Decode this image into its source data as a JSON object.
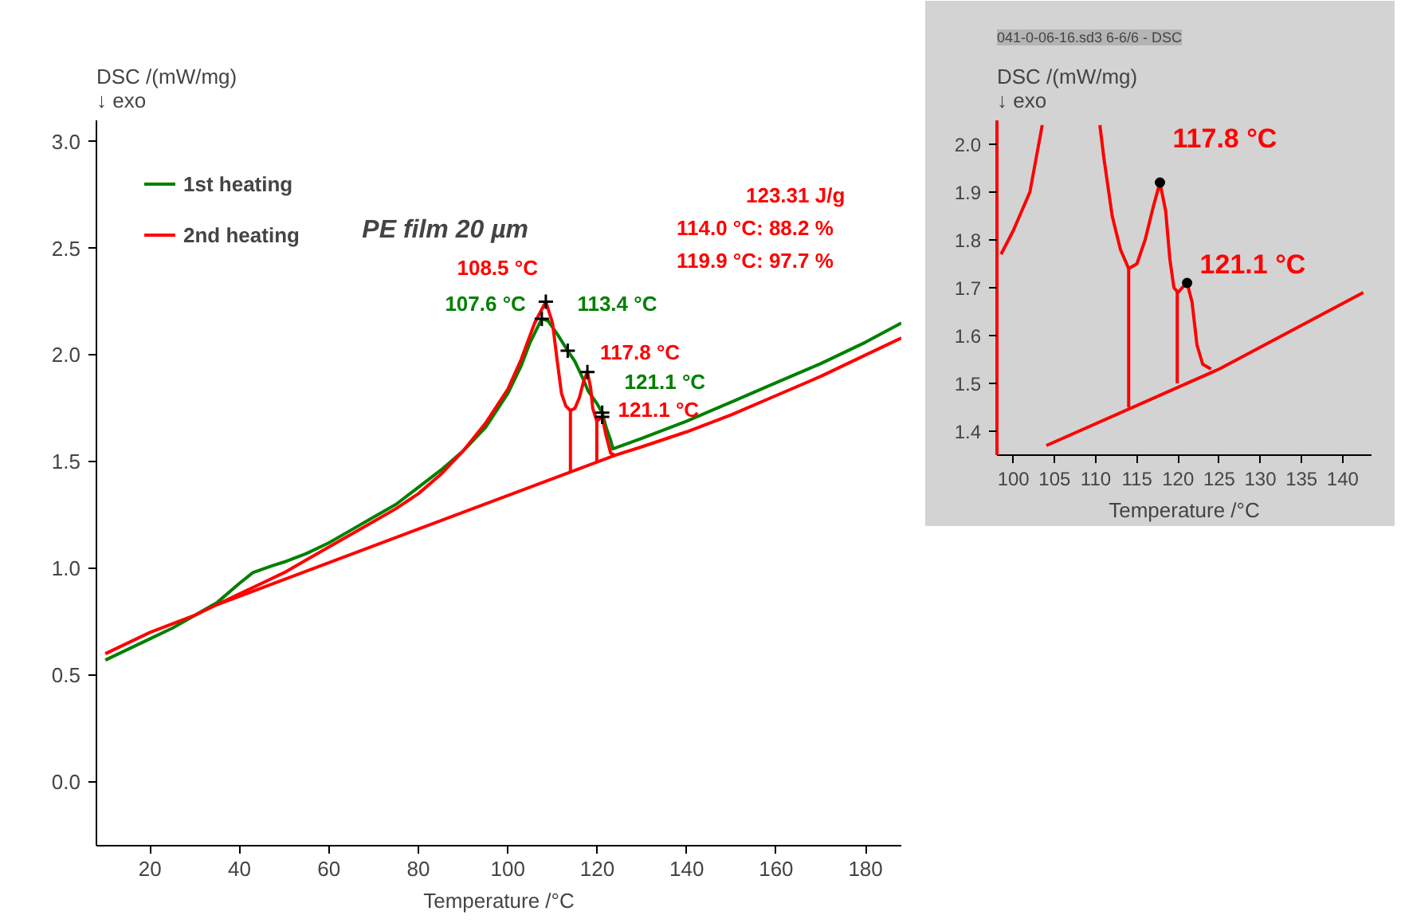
{
  "chart_data": [
    {
      "type": "line",
      "title": "PE film 20 µm",
      "xlabel": "Temperature /°C",
      "ylabel": "DSC /(mW/mg)\n↓ exo",
      "xlim": [
        8,
        188
      ],
      "ylim": [
        -0.3,
        3.1
      ],
      "xticks": [
        20,
        40,
        60,
        80,
        100,
        120,
        140,
        160,
        180
      ],
      "yticks": [
        {
          "value": 0,
          "label": "0.0"
        },
        0.5,
        {
          "value": 1,
          "label": "1.0"
        },
        1.5,
        {
          "value": 2,
          "label": "2.0"
        },
        2.5,
        {
          "value": 3,
          "label": "3.0"
        }
      ],
      "grid": false,
      "legend": "top left",
      "marker": "none",
      "line_style": "solid",
      "series": [
        {
          "name": "1st heating",
          "color": "#008000",
          "x": [
            10,
            20,
            25,
            30,
            35,
            40,
            43,
            47,
            50,
            55,
            60,
            65,
            70,
            75,
            80,
            85,
            90,
            95,
            100,
            103,
            105,
            107.6,
            109,
            111,
            113.4,
            115,
            117,
            118,
            120,
            121.1,
            122,
            123,
            123.5,
            130,
            140,
            150,
            160,
            170,
            180,
            188
          ],
          "values": [
            0.57,
            0.67,
            0.72,
            0.78,
            0.84,
            0.93,
            0.98,
            1.01,
            1.03,
            1.07,
            1.12,
            1.18,
            1.24,
            1.3,
            1.38,
            1.46,
            1.55,
            1.66,
            1.82,
            1.95,
            2.06,
            2.17,
            2.16,
            2.1,
            2.02,
            1.97,
            1.88,
            1.83,
            1.77,
            1.73,
            1.66,
            1.6,
            1.56,
            1.61,
            1.69,
            1.78,
            1.87,
            1.96,
            2.06,
            2.15
          ]
        },
        {
          "name": "2nd heating",
          "color": "#ff0000",
          "x": [
            10,
            20,
            30,
            35,
            40,
            45,
            50,
            55,
            60,
            65,
            70,
            75,
            80,
            85,
            90,
            95,
            100,
            103,
            106,
            108.5,
            110,
            111,
            112,
            113,
            114,
            115,
            116,
            117,
            117.8,
            118.5,
            119,
            119.9,
            120.5,
            121.1,
            122,
            123,
            124,
            130,
            140,
            150,
            160,
            170,
            180,
            188
          ],
          "values": [
            0.6,
            0.7,
            0.78,
            0.83,
            0.88,
            0.93,
            0.98,
            1.04,
            1.1,
            1.16,
            1.22,
            1.28,
            1.35,
            1.44,
            1.55,
            1.68,
            1.84,
            1.98,
            2.15,
            2.25,
            2.15,
            1.98,
            1.82,
            1.76,
            1.74,
            1.75,
            1.8,
            1.88,
            1.92,
            1.85,
            1.75,
            1.69,
            1.7,
            1.71,
            1.62,
            1.54,
            1.53,
            1.57,
            1.64,
            1.72,
            1.81,
            1.9,
            2.0,
            2.08
          ]
        },
        {
          "color": "#ff0000",
          "x": [
            35,
            124
          ],
          "values": [
            0.83,
            1.53
          ]
        },
        {
          "color": "#ff0000",
          "x": [
            114,
            114
          ],
          "values": [
            1.45,
            1.74
          ]
        },
        {
          "color": "#ff0000",
          "x": [
            119.9,
            119.9
          ],
          "values": [
            1.5,
            1.69
          ]
        }
      ],
      "annotations": [
        "123.31 J/g",
        "114.0 °C:   88.2 %",
        "119.9 °C:   97.7 %",
        {
          "text": "108.5 °C",
          "x": 108.5,
          "y": 2.25
        },
        {
          "text": "107.6 °C",
          "x": 107.6,
          "y": 2.17
        },
        {
          "text": "113.4 °C",
          "x": 113.4,
          "y": 2.02
        },
        {
          "text": "117.8 °C",
          "x": 117.8,
          "y": 1.92
        },
        {
          "text": "121.1 °C",
          "x": 121.1,
          "y": 1.73
        },
        {
          "text": "121.1 °C",
          "x": 121.1,
          "y": 1.71
        }
      ]
    },
    {
      "type": "line",
      "subtitle": "041-0-06-16.sd3 6-6/6 - DSC",
      "xlabel": "Temperature /°C",
      "ylabel": "DSC /(mW/mg)\n↓ exo",
      "xlim": [
        98,
        143.5
      ],
      "ylim": [
        1.35,
        2.05
      ],
      "xticks": [
        100,
        105,
        110,
        115,
        120,
        125,
        130,
        135,
        140
      ],
      "yticks": [
        1.4,
        1.5,
        1.6,
        1.7,
        1.8,
        1.9,
        {
          "value": 2,
          "label": "2.0"
        }
      ],
      "grid": false,
      "marker": "none",
      "line_style": "solid",
      "series": [
        {
          "color": "#ff0000",
          "x": [
            98.5,
            100,
            102,
            103.5
          ],
          "values": [
            1.77,
            1.82,
            1.9,
            2.04
          ]
        },
        {
          "color": "#ff0000",
          "x": [
            110.5,
            111,
            112,
            113,
            114,
            115,
            116,
            117,
            117.8,
            118.5,
            119,
            119.5,
            120,
            120.5,
            121.1,
            121.7,
            122.3,
            123,
            124
          ],
          "values": [
            2.04,
            1.97,
            1.85,
            1.78,
            1.74,
            1.75,
            1.8,
            1.87,
            1.92,
            1.86,
            1.76,
            1.7,
            1.69,
            1.7,
            1.71,
            1.67,
            1.58,
            1.54,
            1.53
          ]
        },
        {
          "color": "#ff0000",
          "x": [
            104,
            125,
            142.5
          ],
          "values": [
            1.37,
            1.53,
            1.69
          ]
        },
        {
          "color": "#ff0000",
          "x": [
            114,
            114
          ],
          "values": [
            1.45,
            1.74
          ]
        },
        {
          "color": "#ff0000",
          "x": [
            119.9,
            119.9
          ],
          "values": [
            1.5,
            1.69
          ]
        }
      ],
      "annotations": [
        {
          "text": "117.8 °C",
          "x": 117.8,
          "y": 1.92
        },
        {
          "text": "121.1 °C",
          "x": 121.1,
          "y": 1.71
        }
      ]
    }
  ]
}
